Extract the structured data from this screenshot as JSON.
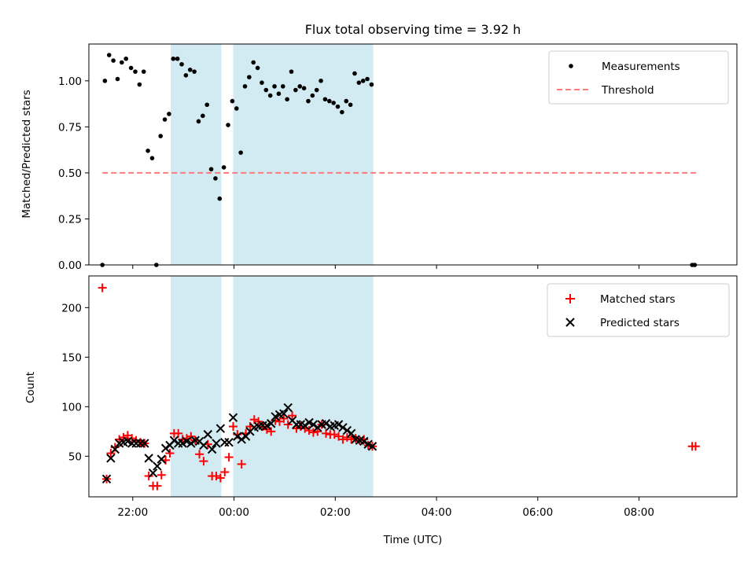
{
  "chart_data": [
    {
      "type": "scatter",
      "title": "Flux total observing time = 3.92 h",
      "ylabel": "Matched/Predicted stars",
      "xlim": [
        "21:08",
        "09:56"
      ],
      "ylim": [
        0,
        1.2
      ],
      "yticks": [
        "0.00",
        "0.25",
        "0.50",
        "0.75",
        "1.00"
      ],
      "grid": false,
      "legend_position": "upper right",
      "shaded_intervals": [
        [
          "22:45",
          "23:45"
        ],
        [
          "23:59",
          "02:45"
        ]
      ],
      "shade_color": "#add8e6",
      "threshold": {
        "name": "Threshold",
        "value": 0.5,
        "x_range": [
          "21:24",
          "09:08"
        ],
        "color": "#ff7b7b"
      },
      "series": [
        {
          "name": "Measurements",
          "color": "#000000",
          "marker": "dot",
          "points": [
            [
              "21:24",
              0.0
            ],
            [
              "21:27",
              1.0
            ],
            [
              "21:32",
              1.14
            ],
            [
              "21:37",
              1.11
            ],
            [
              "21:42",
              1.01
            ],
            [
              "21:47",
              1.1
            ],
            [
              "21:52",
              1.12
            ],
            [
              "21:58",
              1.07
            ],
            [
              "22:03",
              1.05
            ],
            [
              "22:08",
              0.98
            ],
            [
              "22:13",
              1.05
            ],
            [
              "22:18",
              0.62
            ],
            [
              "22:23",
              0.58
            ],
            [
              "22:28",
              0.0
            ],
            [
              "22:33",
              0.7
            ],
            [
              "22:38",
              0.79
            ],
            [
              "22:43",
              0.82
            ],
            [
              "22:48",
              1.12
            ],
            [
              "22:53",
              1.12
            ],
            [
              "22:58",
              1.09
            ],
            [
              "23:03",
              1.03
            ],
            [
              "23:08",
              1.06
            ],
            [
              "23:13",
              1.05
            ],
            [
              "23:18",
              0.78
            ],
            [
              "23:23",
              0.81
            ],
            [
              "23:28",
              0.87
            ],
            [
              "23:33",
              0.52
            ],
            [
              "23:38",
              0.47
            ],
            [
              "23:43",
              0.36
            ],
            [
              "23:48",
              0.53
            ],
            [
              "23:53",
              0.76
            ],
            [
              "23:58",
              0.89
            ],
            [
              "00:03",
              0.85
            ],
            [
              "00:08",
              0.61
            ],
            [
              "00:13",
              0.97
            ],
            [
              "00:18",
              1.02
            ],
            [
              "00:23",
              1.1
            ],
            [
              "00:28",
              1.07
            ],
            [
              "00:33",
              0.99
            ],
            [
              "00:38",
              0.95
            ],
            [
              "00:43",
              0.92
            ],
            [
              "00:48",
              0.97
            ],
            [
              "00:53",
              0.93
            ],
            [
              "00:58",
              0.97
            ],
            [
              "01:03",
              0.9
            ],
            [
              "01:08",
              1.05
            ],
            [
              "01:13",
              0.95
            ],
            [
              "01:18",
              0.97
            ],
            [
              "01:23",
              0.96
            ],
            [
              "01:28",
              0.89
            ],
            [
              "01:33",
              0.92
            ],
            [
              "01:38",
              0.95
            ],
            [
              "01:43",
              1.0
            ],
            [
              "01:48",
              0.9
            ],
            [
              "01:53",
              0.89
            ],
            [
              "01:58",
              0.88
            ],
            [
              "02:03",
              0.86
            ],
            [
              "02:08",
              0.83
            ],
            [
              "02:13",
              0.89
            ],
            [
              "02:18",
              0.87
            ],
            [
              "02:23",
              1.04
            ],
            [
              "02:28",
              0.99
            ],
            [
              "02:33",
              1.0
            ],
            [
              "02:38",
              1.01
            ],
            [
              "02:43",
              0.98
            ],
            [
              "09:03",
              0.0
            ],
            [
              "09:06",
              0.0
            ]
          ]
        }
      ]
    },
    {
      "type": "scatter",
      "xlabel": "Time (UTC)",
      "ylabel": "Count",
      "xlim": [
        "21:08",
        "09:56"
      ],
      "ylim": [
        9,
        232
      ],
      "xticks": [
        "22:00",
        "00:00",
        "02:00",
        "04:00",
        "06:00",
        "08:00"
      ],
      "yticks": [
        "50",
        "100",
        "150",
        "200"
      ],
      "grid": false,
      "legend_position": "upper right",
      "shaded_intervals": [
        [
          "22:45",
          "23:45"
        ],
        [
          "23:59",
          "02:45"
        ]
      ],
      "shade_color": "#add8e6",
      "series": [
        {
          "name": "Matched stars",
          "color": "#ff0000",
          "marker": "plus",
          "points": [
            [
              "21:24",
              220
            ],
            [
              "21:29",
              27
            ],
            [
              "21:34",
              53
            ],
            [
              "21:39",
              59
            ],
            [
              "21:44",
              67
            ],
            [
              "21:49",
              69
            ],
            [
              "21:54",
              71
            ],
            [
              "21:59",
              68
            ],
            [
              "22:04",
              66
            ],
            [
              "22:09",
              64
            ],
            [
              "22:14",
              63
            ],
            [
              "22:19",
              30
            ],
            [
              "22:24",
              20
            ],
            [
              "22:29",
              20
            ],
            [
              "22:34",
              31
            ],
            [
              "22:39",
              46
            ],
            [
              "22:44",
              53
            ],
            [
              "22:49",
              73
            ],
            [
              "22:54",
              73
            ],
            [
              "22:59",
              67
            ],
            [
              "23:04",
              68
            ],
            [
              "23:09",
              70
            ],
            [
              "23:14",
              66
            ],
            [
              "23:19",
              52
            ],
            [
              "23:24",
              45
            ],
            [
              "23:29",
              62
            ],
            [
              "23:34",
              30
            ],
            [
              "23:39",
              30
            ],
            [
              "23:44",
              28
            ],
            [
              "23:49",
              34
            ],
            [
              "23:54",
              49
            ],
            [
              "23:59",
              80
            ],
            [
              "00:04",
              72
            ],
            [
              "00:09",
              42
            ],
            [
              "00:14",
              73
            ],
            [
              "00:19",
              80
            ],
            [
              "00:24",
              87
            ],
            [
              "00:29",
              85
            ],
            [
              "00:34",
              80
            ],
            [
              "00:39",
              77
            ],
            [
              "00:44",
              75
            ],
            [
              "00:49",
              86
            ],
            [
              "00:54",
              85
            ],
            [
              "00:59",
              88
            ],
            [
              "01:04",
              82
            ],
            [
              "01:09",
              91
            ],
            [
              "01:14",
              78
            ],
            [
              "01:19",
              80
            ],
            [
              "01:24",
              78
            ],
            [
              "01:29",
              76
            ],
            [
              "01:34",
              74
            ],
            [
              "01:39",
              75
            ],
            [
              "01:44",
              82
            ],
            [
              "01:49",
              73
            ],
            [
              "01:54",
              72
            ],
            [
              "01:59",
              72
            ],
            [
              "02:04",
              70
            ],
            [
              "02:09",
              67
            ],
            [
              "02:14",
              69
            ],
            [
              "02:19",
              67
            ],
            [
              "02:24",
              68
            ],
            [
              "02:29",
              66
            ],
            [
              "02:34",
              67
            ],
            [
              "02:39",
              61
            ],
            [
              "02:44",
              60
            ],
            [
              "09:03",
              60
            ],
            [
              "09:07",
              60
            ]
          ]
        },
        {
          "name": "Predicted stars",
          "color": "#000000",
          "marker": "x",
          "points": [
            [
              "21:29",
              27
            ],
            [
              "21:34",
              48
            ],
            [
              "21:39",
              57
            ],
            [
              "21:44",
              63
            ],
            [
              "21:49",
              64
            ],
            [
              "21:54",
              65
            ],
            [
              "21:59",
              63
            ],
            [
              "22:04",
              63
            ],
            [
              "22:09",
              63
            ],
            [
              "22:14",
              63
            ],
            [
              "22:19",
              48
            ],
            [
              "22:24",
              33
            ],
            [
              "22:29",
              40
            ],
            [
              "22:34",
              47
            ],
            [
              "22:39",
              58
            ],
            [
              "22:44",
              61
            ],
            [
              "22:49",
              66
            ],
            [
              "22:54",
              63
            ],
            [
              "22:59",
              63
            ],
            [
              "23:04",
              65
            ],
            [
              "23:09",
              63
            ],
            [
              "23:14",
              66
            ],
            [
              "23:19",
              65
            ],
            [
              "23:24",
              61
            ],
            [
              "23:29",
              72
            ],
            [
              "23:34",
              57
            ],
            [
              "23:39",
              63
            ],
            [
              "23:44",
              78
            ],
            [
              "23:49",
              64
            ],
            [
              "23:54",
              64
            ],
            [
              "23:59",
              89
            ],
            [
              "00:04",
              70
            ],
            [
              "00:09",
              67
            ],
            [
              "00:14",
              70
            ],
            [
              "00:19",
              75
            ],
            [
              "00:24",
              79
            ],
            [
              "00:29",
              80
            ],
            [
              "00:34",
              81
            ],
            [
              "00:39",
              81
            ],
            [
              "00:44",
              83
            ],
            [
              "00:49",
              90
            ],
            [
              "00:54",
              92
            ],
            [
              "00:59",
              93
            ],
            [
              "01:04",
              99
            ],
            [
              "01:09",
              86
            ],
            [
              "01:14",
              82
            ],
            [
              "01:19",
              82
            ],
            [
              "01:24",
              81
            ],
            [
              "01:29",
              84
            ],
            [
              "01:34",
              82
            ],
            [
              "01:39",
              79
            ],
            [
              "01:44",
              82
            ],
            [
              "01:49",
              83
            ],
            [
              "01:54",
              80
            ],
            [
              "01:59",
              81
            ],
            [
              "02:04",
              82
            ],
            [
              "02:09",
              79
            ],
            [
              "02:14",
              76
            ],
            [
              "02:19",
              73
            ],
            [
              "02:24",
              67
            ],
            [
              "02:29",
              66
            ],
            [
              "02:34",
              65
            ],
            [
              "02:39",
              62
            ],
            [
              "02:44",
              60
            ]
          ]
        }
      ]
    }
  ]
}
